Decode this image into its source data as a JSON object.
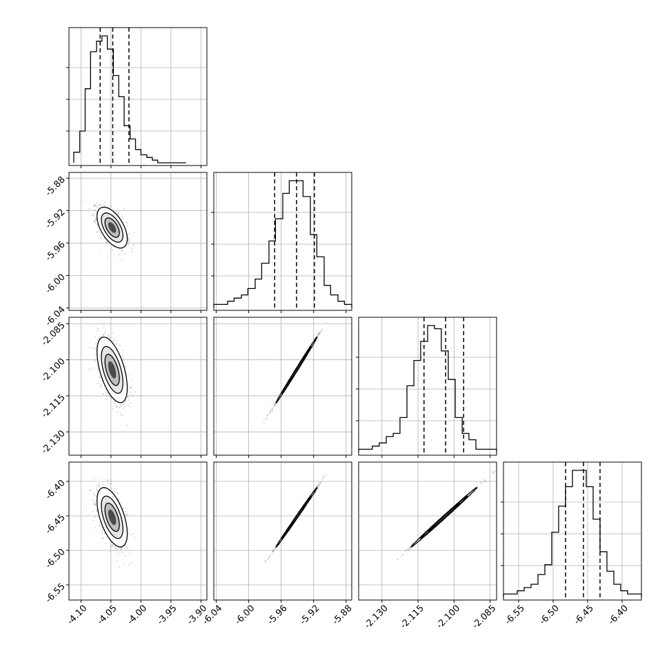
{
  "chart_data": {
    "type": "corner",
    "title": "",
    "n_params": 4,
    "params": [
      {
        "xlim": [
          -4.12,
          -3.89
        ],
        "ylim": [
          -6.041,
          -5.872
        ],
        "ticks": [
          "-4.10",
          "-4.05",
          "-4.00",
          "-3.95",
          "-3.90"
        ],
        "tick_values": [
          -4.1,
          -4.05,
          -4.0,
          -3.95,
          -3.9
        ],
        "quantiles": [
          -4.068,
          -4.047,
          -4.02
        ],
        "hist_peak": -4.048
      },
      {
        "xlim": [
          -6.043,
          -5.873
        ],
        "ylim": [
          -6.043,
          -5.873
        ],
        "ticks": [
          "-6.04",
          "-6.00",
          "-5.96",
          "-5.92",
          "-5.88"
        ],
        "tick_values": [
          -6.04,
          -6.0,
          -5.96,
          -5.92,
          -5.88
        ],
        "quantiles": [
          -5.968,
          -5.941,
          -5.919
        ],
        "hist_peak": -5.941
      },
      {
        "xlim": [
          -2.1397,
          -2.0823
        ],
        "ylim": [
          -2.1397,
          -2.0823
        ],
        "ticks": [
          "-2.130",
          "-2.115",
          "-2.100",
          "-2.085"
        ],
        "tick_values": [
          -2.13,
          -2.115,
          -2.1,
          -2.085
        ],
        "quantiles": [
          -2.1125,
          -2.1035,
          -2.096
        ],
        "hist_peak": -2.1045
      },
      {
        "xlim": [
          -6.572,
          -6.372
        ],
        "ylim": [
          -6.572,
          -6.372
        ],
        "ticks": [
          "-6.55",
          "-6.50",
          "-6.45",
          "-6.40"
        ],
        "tick_values": [
          -6.55,
          -6.5,
          -6.45,
          -6.4
        ],
        "quantiles": [
          -6.482,
          -6.456,
          -6.432
        ],
        "hist_peak": -6.448
      }
    ],
    "hist_bins": [
      [
        -4.112,
        -4.102,
        -4.093,
        -4.084,
        -4.074,
        -4.065,
        -4.056,
        -4.046,
        -4.037,
        -4.028,
        -4.018,
        -4.009,
        -4.0,
        -3.99,
        -3.981,
        -3.972,
        -3.962,
        -3.953,
        -3.944,
        -3.934,
        -3.925
      ],
      [
        -6.043,
        -6.035,
        -6.026,
        -6.018,
        -6.009,
        -6.001,
        -5.992,
        -5.984,
        -5.975,
        -5.967,
        -5.958,
        -5.95,
        -5.941,
        -5.933,
        -5.924,
        -5.916,
        -5.907,
        -5.899,
        -5.89,
        -5.882,
        -5.873
      ],
      [
        -2.1397,
        -2.1368,
        -2.134,
        -2.1311,
        -2.1282,
        -2.1253,
        -2.1225,
        -2.1196,
        -2.1167,
        -2.1139,
        -2.111,
        -2.1081,
        -2.1053,
        -2.1024,
        -2.0995,
        -2.0966,
        -2.0938,
        -2.0909,
        -2.088,
        -2.0852,
        -2.0823
      ],
      [
        -6.572,
        -6.562,
        -6.552,
        -6.542,
        -6.532,
        -6.522,
        -6.512,
        -6.502,
        -6.492,
        -6.482,
        -6.472,
        -6.462,
        -6.452,
        -6.442,
        -6.432,
        -6.422,
        -6.412,
        -6.402,
        -6.392,
        -6.382,
        -6.372
      ]
    ],
    "hist_counts": [
      [
        4,
        12,
        28,
        42,
        46,
        48,
        43,
        33,
        25,
        14,
        9,
        5,
        3,
        2,
        1,
        0,
        0,
        0,
        0,
        0
      ],
      [
        1,
        1,
        2,
        3,
        4,
        6,
        9,
        14,
        21,
        28,
        36,
        40,
        40,
        35,
        23,
        16,
        7,
        4,
        2,
        1
      ],
      [
        1,
        1,
        2,
        3,
        5,
        6,
        11,
        21,
        29,
        35,
        40,
        39,
        32,
        23,
        11,
        6,
        4,
        1,
        1,
        1
      ],
      [
        1,
        1,
        2,
        3,
        4,
        7,
        10,
        20,
        28,
        34,
        39,
        39,
        34,
        24,
        14,
        8,
        4,
        2,
        1,
        1
      ]
    ],
    "pairs": [
      {
        "row": 1,
        "col": 0,
        "mean": [
          -4.048,
          -5.941
        ],
        "sd": [
          0.012,
          0.012
        ],
        "rho": -0.55
      },
      {
        "row": 2,
        "col": 0,
        "mean": [
          -4.048,
          -2.1042
        ],
        "sd": [
          0.012,
          0.0065
        ],
        "rho": -0.55
      },
      {
        "row": 2,
        "col": 1,
        "mean": [
          -5.941,
          -2.1042
        ],
        "sd": [
          0.012,
          0.0065
        ],
        "rho": 0.998
      },
      {
        "row": 3,
        "col": 0,
        "mean": [
          -4.048,
          -6.452
        ],
        "sd": [
          0.012,
          0.0205
        ],
        "rho": -0.55
      },
      {
        "row": 3,
        "col": 1,
        "mean": [
          -5.941,
          -6.452
        ],
        "sd": [
          0.012,
          0.0205
        ],
        "rho": 0.998
      },
      {
        "row": 3,
        "col": 2,
        "mean": [
          -2.1042,
          -6.452
        ],
        "sd": [
          0.0065,
          0.0205
        ],
        "rho": 0.998
      }
    ],
    "grid": true,
    "colors": {
      "axes": "#000000",
      "grid": "#b0b0b0",
      "hist": "#000000",
      "points": "#8c8c8c",
      "contour": "#000000"
    }
  }
}
